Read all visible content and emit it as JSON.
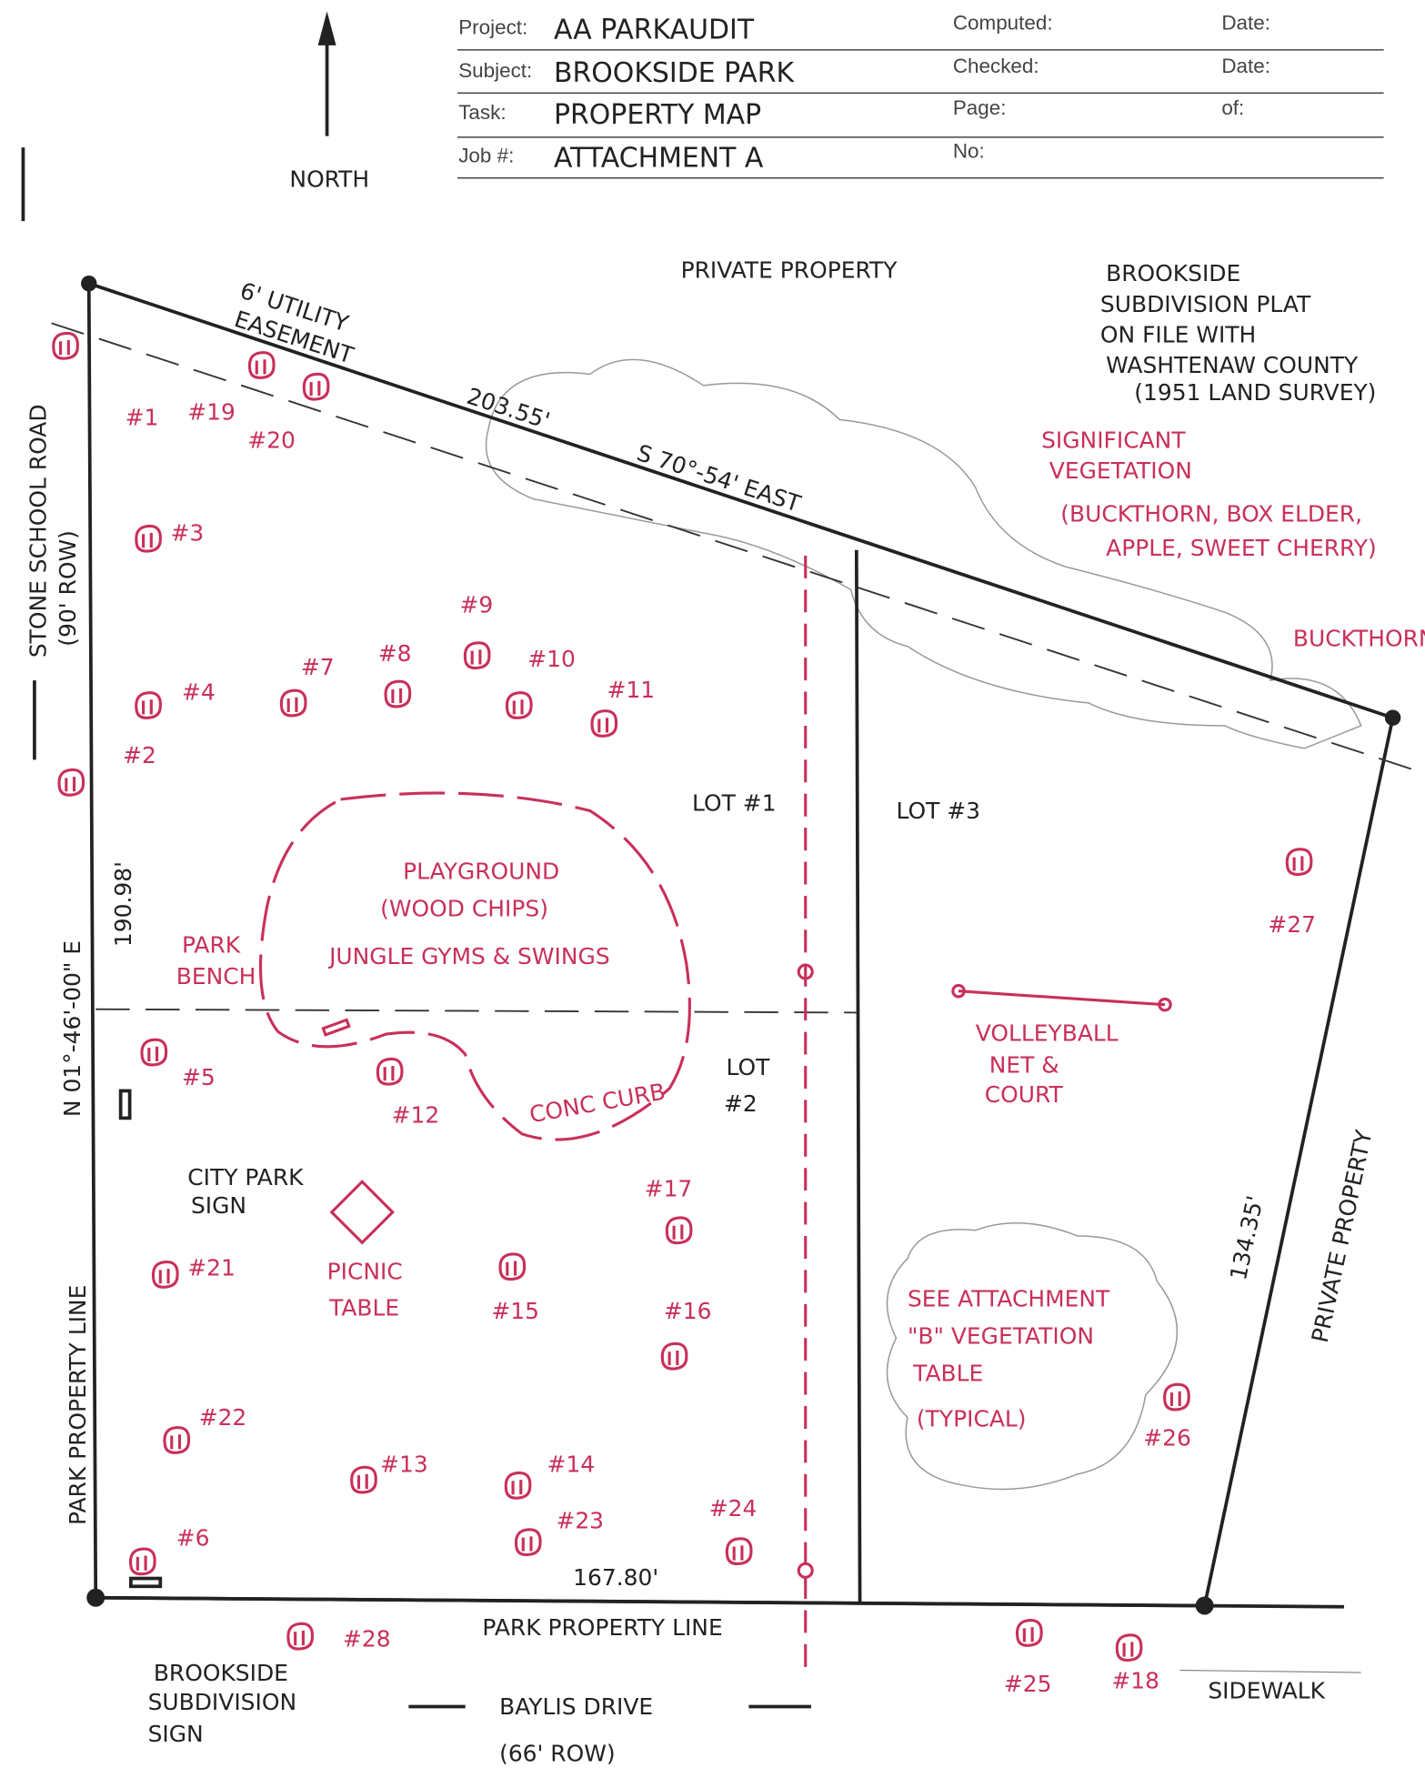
{
  "header": {
    "rows": [
      {
        "label": "Project:",
        "value": "AA PARKAUDIT",
        "right_label": "Computed:",
        "right_label2": "Date:"
      },
      {
        "label": "Subject:",
        "value": "BROOKSIDE PARK",
        "right_label": "Checked:",
        "right_label2": "Date:"
      },
      {
        "label": "Task:",
        "value": "PROPERTY MAP",
        "right_label": "Page:",
        "right_label2": "of:"
      },
      {
        "label": "Job #:",
        "value": "ATTACHMENT A",
        "right_label": "No:"
      }
    ]
  },
  "north": "NORTH",
  "labels": {
    "private_property_top": "PRIVATE PROPERTY",
    "plat_note": [
      "BROOKSIDE",
      "SUBDIVISION PLAT",
      "ON FILE WITH",
      "WASHTENAW COUNTY",
      "(1951 LAND SURVEY)"
    ],
    "easement": [
      "6' UTILITY",
      "EASEMENT"
    ],
    "north_length": "203.55'",
    "north_bearing": "S 70°-54' EAST",
    "vegetation": [
      "SIGNIFICANT",
      "VEGETATION",
      "(BUCKTHORN, BOX ELDER,",
      "APPLE, SWEET CHERRY)"
    ],
    "buckthorn": "BUCKTHORN",
    "road": "STONE SCHOOL ROAD",
    "road_row": "(90' ROW)",
    "west_bearing": "N 01°-46'-00\" E",
    "west_length": "190.98'",
    "lot1": "LOT #1",
    "lot3": "LOT #3",
    "lot2": [
      "LOT",
      "#2"
    ],
    "playground": [
      "PLAYGROUND",
      "(WOOD CHIPS)",
      "JUNGLE GYMS & SWINGS"
    ],
    "bench": [
      "PARK",
      "BENCH"
    ],
    "curb": "CONC CURB",
    "city_sign": [
      "CITY PARK",
      "SIGN"
    ],
    "picnic": [
      "PICNIC",
      "TABLE"
    ],
    "volleyball": [
      "VOLLEYBALL",
      "NET &",
      "COURT"
    ],
    "see_attachment": [
      "SEE ATTACHMENT",
      "\"B\" VEGETATION",
      "TABLE",
      "(TYPICAL)"
    ],
    "east_length": "134.35'",
    "private_property_right": "PRIVATE PROPERTY",
    "west_line": "PARK PROPERTY LINE",
    "south_line": "PARK PROPERTY LINE",
    "south_length": "167.80'",
    "subdivision_sign": [
      "BROOKSIDE",
      "SUBDIVISION",
      "SIGN"
    ],
    "street": "BAYLIS DRIVE",
    "street_row": "(66' ROW)",
    "sidewalk": "SIDEWALK"
  },
  "trees": [
    "#1",
    "#2",
    "#3",
    "#4",
    "#5",
    "#6",
    "#7",
    "#8",
    "#9",
    "#10",
    "#11",
    "#12",
    "#13",
    "#14",
    "#15",
    "#16",
    "#17",
    "#18",
    "#19",
    "#20",
    "#21",
    "#22",
    "#23",
    "#24",
    "#25",
    "#26",
    "#27",
    "#28"
  ]
}
